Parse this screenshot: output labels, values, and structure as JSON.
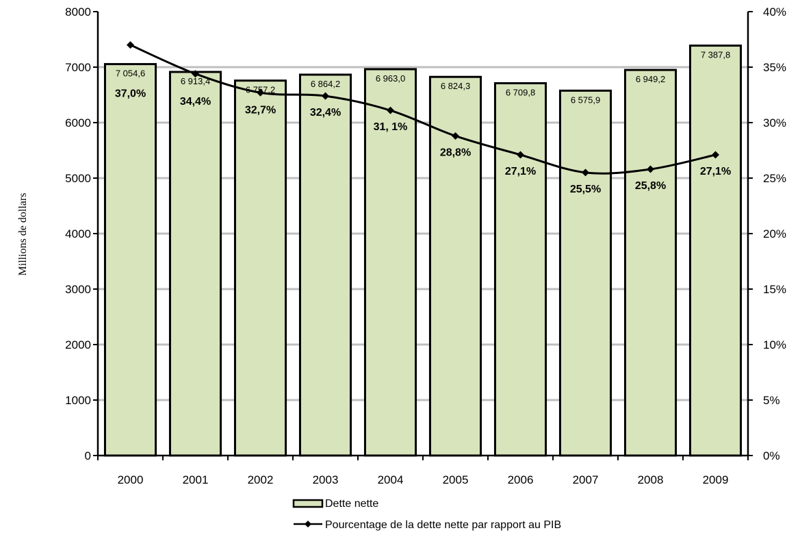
{
  "chart_data": {
    "type": "bar",
    "categories": [
      "2000",
      "2001",
      "2002",
      "2003",
      "2004",
      "2005",
      "2006",
      "2007",
      "2008",
      "2009"
    ],
    "series": [
      {
        "name": "Dette nette",
        "type": "bar",
        "axis": "left",
        "values": [
          7054.6,
          6913.4,
          6757.2,
          6864.2,
          6963.0,
          6824.3,
          6709.8,
          6575.9,
          6949.2,
          7387.8
        ],
        "labels": [
          "7 054,6",
          "6 913,4",
          "6 757,2",
          "6 864,2",
          "6 963,0",
          "6 824,3",
          "6 709,8",
          "6 575,9",
          "6 949,2",
          "7 387,8"
        ],
        "color": "#d8e4bc"
      },
      {
        "name": "Pourcentage de la dette nette par rapport au PIB",
        "type": "line",
        "axis": "right",
        "values": [
          37.0,
          34.4,
          32.7,
          32.4,
          31.1,
          28.8,
          27.1,
          25.5,
          25.8,
          27.1
        ],
        "labels": [
          "37,0%",
          "34,4%",
          "32,7%",
          "32,4%",
          "31, 1%",
          "28,8%",
          "27,1%",
          "25,5%",
          "25,8%",
          "27,1%"
        ],
        "color": "#000000"
      }
    ],
    "ylabel": "Millions de dollars",
    "ylim": [
      0,
      8000
    ],
    "y_ticks": [
      "0",
      "1000",
      "2000",
      "3000",
      "4000",
      "5000",
      "6000",
      "7000",
      "8000"
    ],
    "y2lim": [
      0,
      40
    ],
    "y2_ticks": [
      "0%",
      "5%",
      "10%",
      "15%",
      "20%",
      "25%",
      "30%",
      "35%",
      "40%"
    ],
    "grid": true,
    "legend_position": "bottom"
  }
}
